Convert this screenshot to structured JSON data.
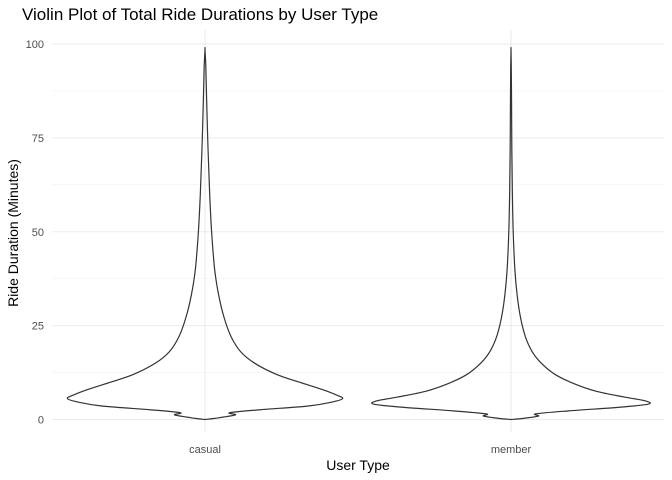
{
  "chart_data": {
    "type": "violin",
    "title": "Violin Plot of Total Ride Durations by User Type",
    "xlabel": "User Type",
    "ylabel": "Ride Duration (Minutes)",
    "categories": [
      "casual",
      "member"
    ],
    "ylim": [
      0,
      100
    ],
    "yticks": [
      0,
      25,
      50,
      75,
      100
    ],
    "grid": true,
    "legend": "none",
    "series": [
      {
        "category": "casual",
        "density_profile": [
          {
            "y": 0,
            "w": 0.0
          },
          {
            "y": 0.3,
            "w": 0.07
          },
          {
            "y": 1.2,
            "w": 0.22
          },
          {
            "y": 1.8,
            "w": 0.18
          },
          {
            "y": 2.6,
            "w": 0.4
          },
          {
            "y": 3.6,
            "w": 0.75
          },
          {
            "y": 4.7,
            "w": 0.93
          },
          {
            "y": 5.6,
            "w": 1.0
          },
          {
            "y": 6.6,
            "w": 0.95
          },
          {
            "y": 8.0,
            "w": 0.85
          },
          {
            "y": 10.0,
            "w": 0.68
          },
          {
            "y": 12.0,
            "w": 0.52
          },
          {
            "y": 15.0,
            "w": 0.36
          },
          {
            "y": 18.0,
            "w": 0.26
          },
          {
            "y": 22.0,
            "w": 0.19
          },
          {
            "y": 27.0,
            "w": 0.14
          },
          {
            "y": 33.0,
            "w": 0.1
          },
          {
            "y": 40.0,
            "w": 0.07
          },
          {
            "y": 50.0,
            "w": 0.048
          },
          {
            "y": 60.0,
            "w": 0.034
          },
          {
            "y": 72.0,
            "w": 0.022
          },
          {
            "y": 85.0,
            "w": 0.012
          },
          {
            "y": 94.0,
            "w": 0.006
          },
          {
            "y": 98.5,
            "w": 0.0
          }
        ]
      },
      {
        "category": "member",
        "density_profile": [
          {
            "y": 0,
            "w": 0.0
          },
          {
            "y": 0.3,
            "w": 0.09
          },
          {
            "y": 0.9,
            "w": 0.2
          },
          {
            "y": 1.5,
            "w": 0.18
          },
          {
            "y": 2.3,
            "w": 0.42
          },
          {
            "y": 3.3,
            "w": 0.8
          },
          {
            "y": 4.1,
            "w": 1.0
          },
          {
            "y": 5.0,
            "w": 0.97
          },
          {
            "y": 6.0,
            "w": 0.82
          },
          {
            "y": 7.5,
            "w": 0.62
          },
          {
            "y": 9.5,
            "w": 0.46
          },
          {
            "y": 12.0,
            "w": 0.32
          },
          {
            "y": 15.0,
            "w": 0.22
          },
          {
            "y": 18.0,
            "w": 0.155
          },
          {
            "y": 22.0,
            "w": 0.105
          },
          {
            "y": 27.0,
            "w": 0.07
          },
          {
            "y": 33.0,
            "w": 0.045
          },
          {
            "y": 40.0,
            "w": 0.028
          },
          {
            "y": 50.0,
            "w": 0.016
          },
          {
            "y": 60.0,
            "w": 0.01
          },
          {
            "y": 72.0,
            "w": 0.006
          },
          {
            "y": 85.0,
            "w": 0.004
          },
          {
            "y": 94.0,
            "w": 0.002
          },
          {
            "y": 98.5,
            "w": 0.0
          }
        ]
      }
    ]
  }
}
